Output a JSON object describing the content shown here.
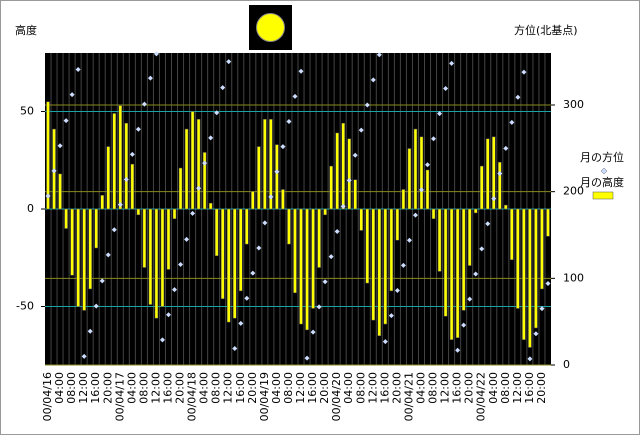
{
  "chart_data": {
    "type": "bar",
    "ylabel": "高度",
    "y2label": "方位(北基点)",
    "categories": [
      "00/04/16",
      null,
      "04:00",
      null,
      "08:00",
      null,
      "12:00",
      null,
      "16:00",
      null,
      "20:00",
      null,
      "00/04/17",
      null,
      "04:00",
      null,
      "08:00",
      null,
      "12:00",
      null,
      "16:00",
      null,
      "20:00",
      null,
      "00/04/18",
      null,
      "04:00",
      null,
      "08:00",
      null,
      "12:00",
      null,
      "16:00",
      null,
      "20:00",
      null,
      "00/04/19",
      null,
      "04:00",
      null,
      "08:00",
      null,
      "12:00",
      null,
      "16:00",
      null,
      "20:00",
      null,
      "00/04/20",
      null,
      "04:00",
      null,
      "08:00",
      null,
      "12:00",
      null,
      "16:00",
      null,
      "20:00",
      null,
      "00/04/21",
      null,
      "04:00",
      null,
      "08:00",
      null,
      "12:00",
      null,
      "16:00",
      null,
      "20:00",
      null,
      "00/04/22",
      null,
      "04:00",
      null,
      "08:00",
      null,
      "12:00",
      null,
      "16:00",
      null,
      "20:00",
      null
    ],
    "series": [
      {
        "name": "月の高度",
        "type": "bar",
        "color": "#ffff00",
        "values": [
          55,
          41,
          18,
          -10,
          -34,
          -50,
          -52,
          -41,
          -20,
          7,
          32,
          49,
          53,
          44,
          23,
          -3,
          -30,
          -49,
          -56,
          -50,
          -31,
          -5,
          21,
          41,
          50,
          46,
          29,
          3,
          -24,
          -46,
          -58,
          -56,
          -42,
          -18,
          9,
          32,
          46,
          46,
          33,
          10,
          -18,
          -43,
          -59,
          -62,
          -51,
          -30,
          -3,
          22,
          39,
          44,
          36,
          15,
          -11,
          -38,
          -57,
          -65,
          -59,
          -42,
          -16,
          10,
          31,
          41,
          37,
          20,
          -5,
          -32,
          -55,
          -67,
          -66,
          -52,
          -29,
          -2,
          22,
          36,
          37,
          24,
          2,
          -26,
          -51,
          -67,
          -71,
          -61,
          -41,
          -14
        ]
      },
      {
        "name": "月の方位",
        "type": "scatter",
        "axis": "y2",
        "color": "#ccddff",
        "values": [
          195,
          224,
          253,
          282,
          312,
          341,
          10,
          39,
          68,
          97,
          127,
          156,
          185,
          214,
          243,
          272,
          301,
          331,
          359,
          29,
          58,
          87,
          116,
          145,
          175,
          204,
          233,
          262,
          291,
          320,
          350,
          19,
          48,
          77,
          106,
          135,
          164,
          194,
          223,
          252,
          281,
          310,
          339,
          8,
          38,
          67,
          96,
          125,
          154,
          183,
          213,
          242,
          271,
          300,
          329,
          358,
          27,
          57,
          86,
          115,
          144,
          173,
          202,
          231,
          261,
          290,
          319,
          348,
          17,
          46,
          76,
          105,
          134,
          163,
          192,
          221,
          250,
          280,
          309,
          338,
          7,
          36,
          65,
          94
        ]
      }
    ],
    "ylim": [
      -80,
      80
    ],
    "yticks": [
      -50,
      0,
      50
    ],
    "y2lim": [
      0,
      360
    ],
    "y2ticks": [
      0,
      100,
      200,
      300
    ],
    "grid": true,
    "legend": "right"
  }
}
